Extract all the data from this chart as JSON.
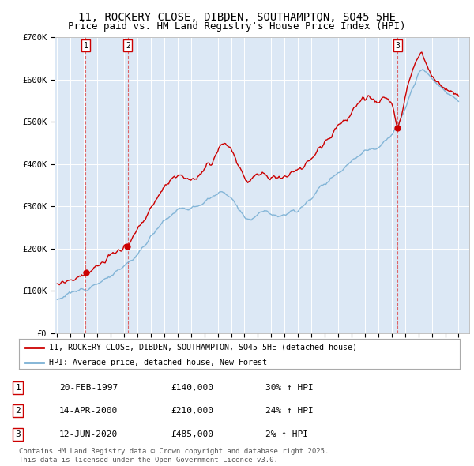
{
  "title_line1": "11, ROCKERY CLOSE, DIBDEN, SOUTHAMPTON, SO45 5HE",
  "title_line2": "Price paid vs. HM Land Registry's House Price Index (HPI)",
  "title_fontsize": 10,
  "subtitle_fontsize": 9,
  "background_color": "#dce8f5",
  "grid_color": "#ffffff",
  "price_line_color": "#cc0000",
  "hpi_line_color": "#7ab0d4",
  "purchase_dates": [
    1997.13,
    2000.28,
    2020.45
  ],
  "purchase_prices": [
    140000,
    210000,
    485000
  ],
  "purchase_labels": [
    "1",
    "2",
    "3"
  ],
  "vline_color": "#cc0000",
  "legend_label_price": "11, ROCKERY CLOSE, DIBDEN, SOUTHAMPTON, SO45 5HE (detached house)",
  "legend_label_hpi": "HPI: Average price, detached house, New Forest",
  "table_data": [
    [
      "1",
      "20-FEB-1997",
      "£140,000",
      "30% ↑ HPI"
    ],
    [
      "2",
      "14-APR-2000",
      "£210,000",
      "24% ↑ HPI"
    ],
    [
      "3",
      "12-JUN-2020",
      "£485,000",
      "2% ↑ HPI"
    ]
  ],
  "footer_text": "Contains HM Land Registry data © Crown copyright and database right 2025.\nThis data is licensed under the Open Government Licence v3.0.",
  "ylim": [
    0,
    700000
  ],
  "yticks": [
    0,
    100000,
    200000,
    300000,
    400000,
    500000,
    600000,
    700000
  ],
  "ylabels": [
    "£0",
    "£100K",
    "£200K",
    "£300K",
    "£400K",
    "£500K",
    "£600K",
    "£700K"
  ],
  "xlim_start": 1994.8,
  "xlim_end": 2025.8,
  "xticks": [
    1995,
    1996,
    1997,
    1998,
    1999,
    2000,
    2001,
    2002,
    2003,
    2004,
    2005,
    2006,
    2007,
    2008,
    2009,
    2010,
    2011,
    2012,
    2013,
    2014,
    2015,
    2016,
    2017,
    2018,
    2019,
    2020,
    2021,
    2022,
    2023,
    2024,
    2025
  ]
}
